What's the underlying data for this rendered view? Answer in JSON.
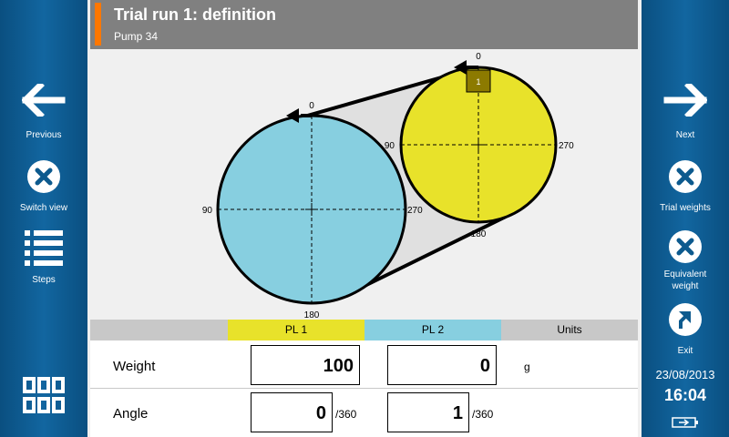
{
  "header": {
    "title": "Trial run 1: definition",
    "subtitle": "Pump 34"
  },
  "left_nav": {
    "previous": "Previous",
    "switch_view": "Switch view",
    "steps": "Steps"
  },
  "right_nav": {
    "next": "Next",
    "trial_weights": "Trial weights",
    "equivalent_weight": "Equivalent weight",
    "exit": "Exit"
  },
  "status": {
    "date": "23/08/2013",
    "time": "16:04"
  },
  "diagram": {
    "pulley_large": {
      "label_top": "0",
      "label_left": "90",
      "label_right": "270",
      "label_bottom": "180"
    },
    "pulley_small": {
      "label_top": "0",
      "label_left": "90",
      "label_right": "270",
      "label_bottom": "180",
      "marker": "1"
    }
  },
  "table": {
    "headers": {
      "blank": "",
      "pl1": "PL 1",
      "pl2": "PL 2",
      "units": "Units"
    },
    "rows": {
      "weight": {
        "label": "Weight",
        "pl1": "100",
        "pl2": "0",
        "unit": "g"
      },
      "angle": {
        "label": "Angle",
        "pl1": "0",
        "pl1_suffix": "/360",
        "pl2": "1",
        "pl2_suffix": "/360"
      }
    }
  },
  "colors": {
    "accent": "#ff7700",
    "pl1": "#e8e22a",
    "pl2": "#87cfe0",
    "side": "#0d5a8e",
    "header": "#808080"
  },
  "icons": [
    "arrow-left-icon",
    "close-circle-icon",
    "list-icon",
    "grid-icon",
    "arrow-right-icon",
    "exit-icon",
    "battery-icon"
  ]
}
